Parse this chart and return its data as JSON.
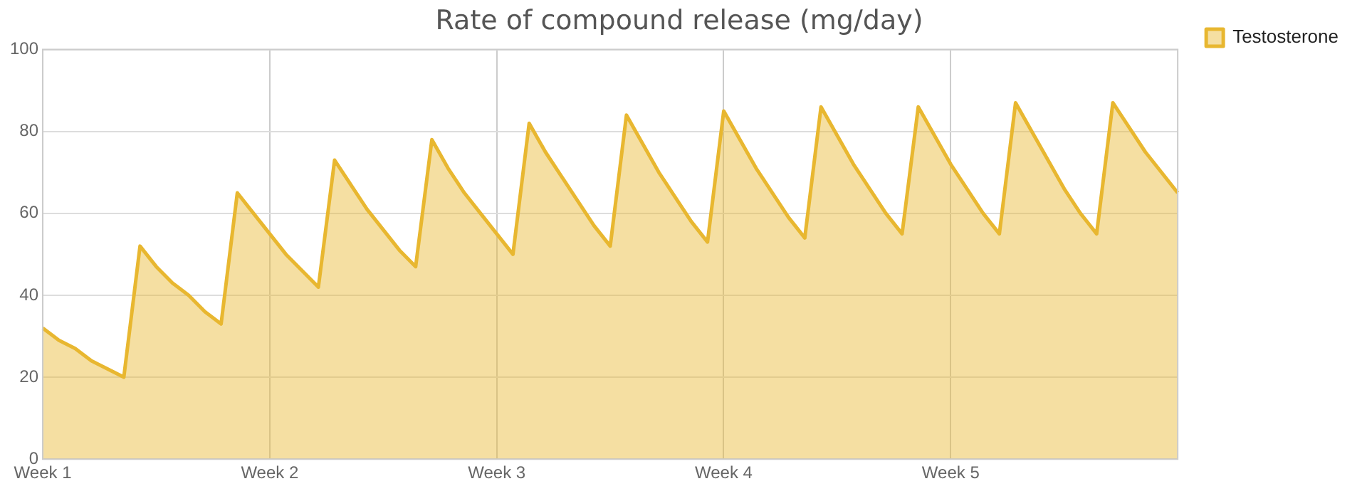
{
  "chart_data": {
    "type": "area",
    "title": "Rate of compound release (mg/day)",
    "categories": [
      "Week 1",
      null,
      null,
      null,
      null,
      null,
      null,
      null,
      null,
      null,
      null,
      null,
      null,
      null,
      "Week 2",
      null,
      null,
      null,
      null,
      null,
      null,
      null,
      null,
      null,
      null,
      null,
      null,
      null,
      "Week 3",
      null,
      null,
      null,
      null,
      null,
      null,
      null,
      null,
      null,
      null,
      null,
      null,
      null,
      "Week 4",
      null,
      null,
      null,
      null,
      null,
      null,
      null,
      null,
      null,
      null,
      null,
      null,
      null,
      "Week 5",
      null,
      null,
      null,
      null,
      null,
      null,
      null,
      null,
      null,
      null,
      null,
      null,
      null,
      null
    ],
    "ylim": [
      0,
      100
    ],
    "yticks": [
      0,
      20,
      40,
      60,
      80,
      100
    ],
    "grid": true,
    "legend": "top right",
    "series": [
      {
        "name": "Testosterone",
        "color": "#e8b730",
        "values": [
          32,
          29,
          27,
          24,
          22,
          20,
          52,
          47,
          43,
          40,
          36,
          33,
          65,
          60,
          55,
          50,
          46,
          42,
          73,
          67,
          61,
          56,
          51,
          47,
          78,
          71,
          65,
          60,
          55,
          50,
          82,
          75,
          69,
          63,
          57,
          52,
          84,
          77,
          70,
          64,
          58,
          53,
          85,
          78,
          71,
          65,
          59,
          54,
          86,
          79,
          72,
          66,
          60,
          55,
          86,
          79,
          72,
          66,
          60,
          55,
          87,
          80,
          73,
          66,
          60,
          55,
          87,
          81,
          75,
          70,
          65
        ]
      }
    ]
  }
}
